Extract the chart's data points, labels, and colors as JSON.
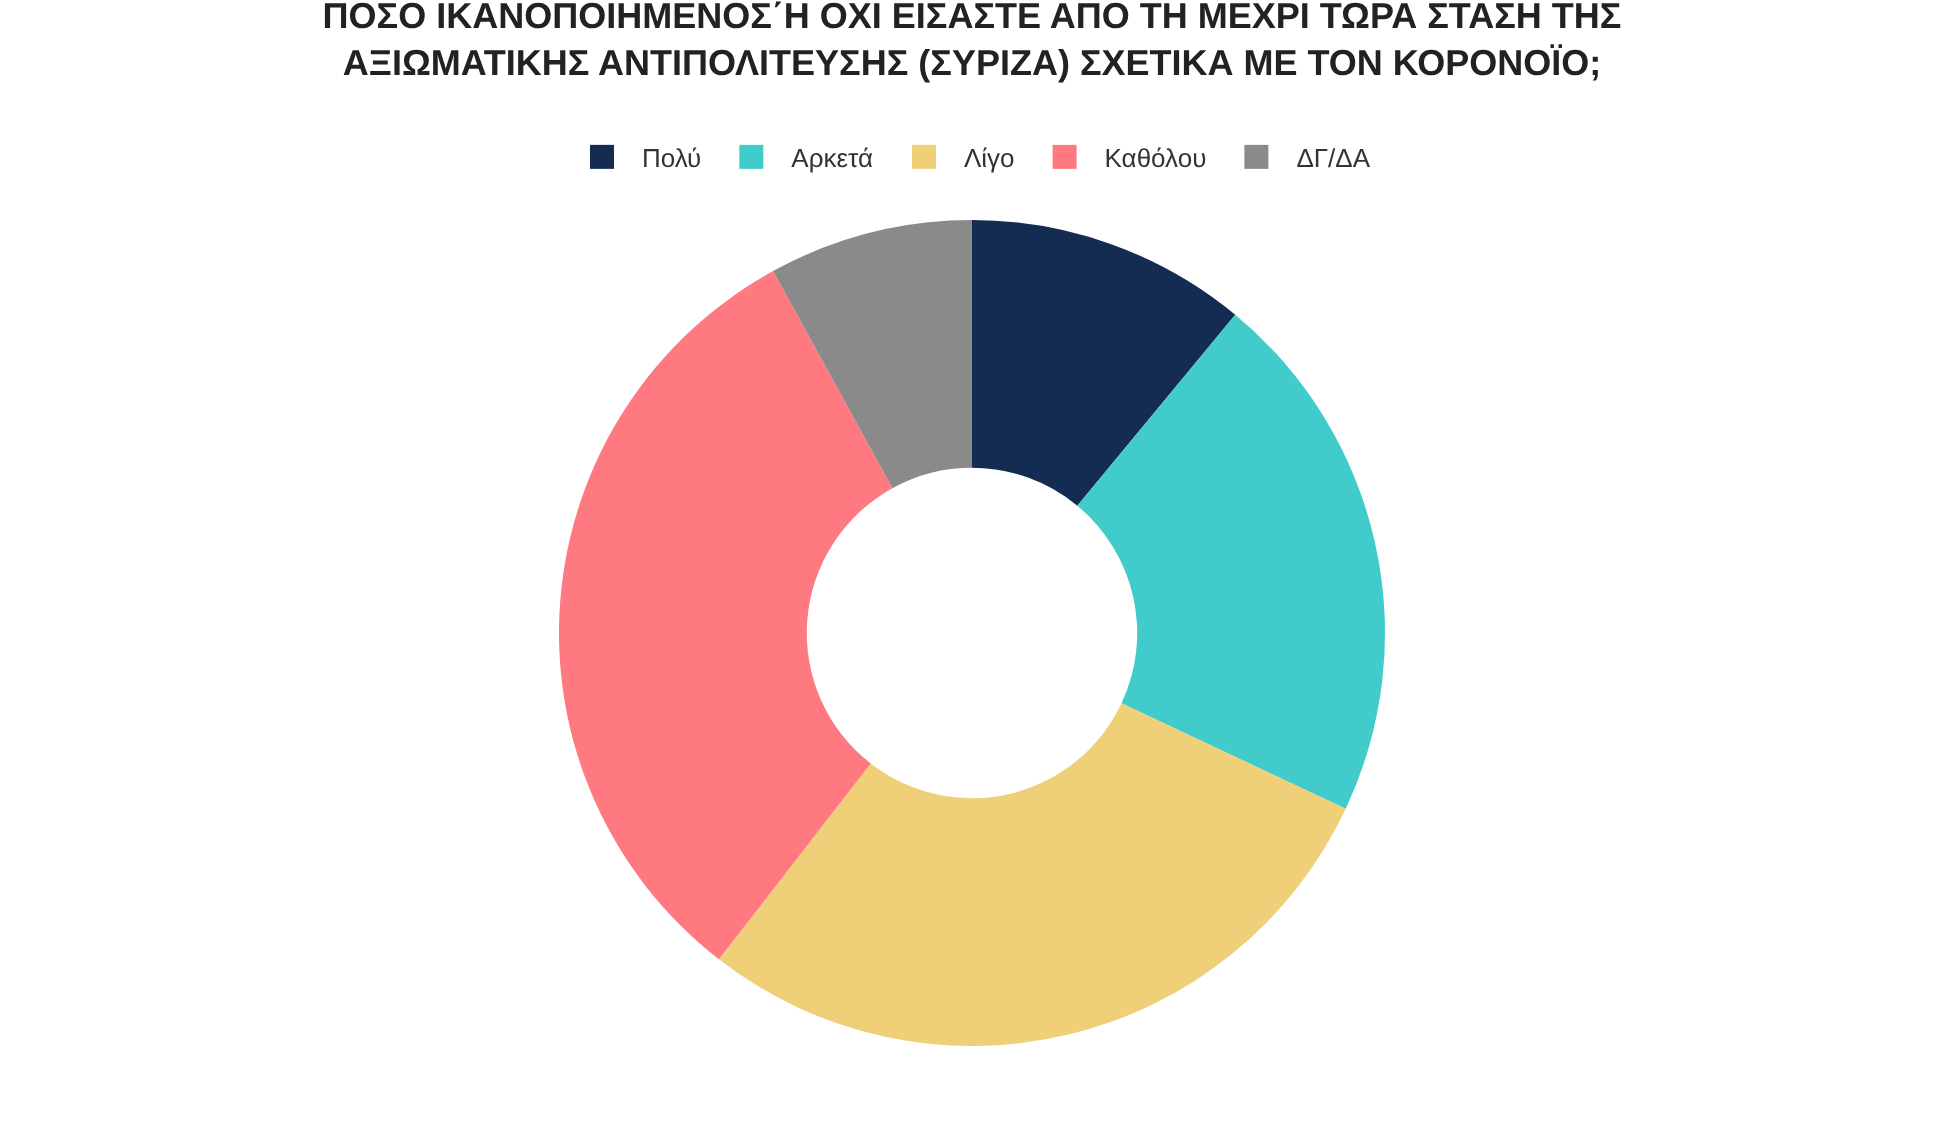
{
  "chart_data": {
    "type": "donut",
    "title": "ΠΟΣΟ ΙΚΑΝΟΠΟΙΗΜΕΝΟΣ΄Η ΟΧΙ ΕΙΣΑΣΤΕ ΑΠΟ ΤΗ ΜΕΧΡΙ ΤΩΡΑ ΣΤΑΣΗ ΤΗΣ ΑΞΙΩΜΑΤΙΚΗΣ ΑΝΤΙΠΟΛΙΤΕΥΣΗΣ (ΣΥΡΙΖΑ) ΣΧΕΤΙΚΑ ΜΕ ΤΟΝ ΚΟΡΟΝΟΪΟ;",
    "categories": [
      "Πολύ",
      "Αρκετά",
      "Λίγο",
      "Καθόλου",
      "ΔΓ/ΔΑ"
    ],
    "values": [
      11,
      21,
      28.5,
      31.5,
      8
    ],
    "colors": [
      "#152c52",
      "#41cccb",
      "#efcf78",
      "#ff7a80",
      "#8a8a8a"
    ],
    "legend": "top"
  }
}
